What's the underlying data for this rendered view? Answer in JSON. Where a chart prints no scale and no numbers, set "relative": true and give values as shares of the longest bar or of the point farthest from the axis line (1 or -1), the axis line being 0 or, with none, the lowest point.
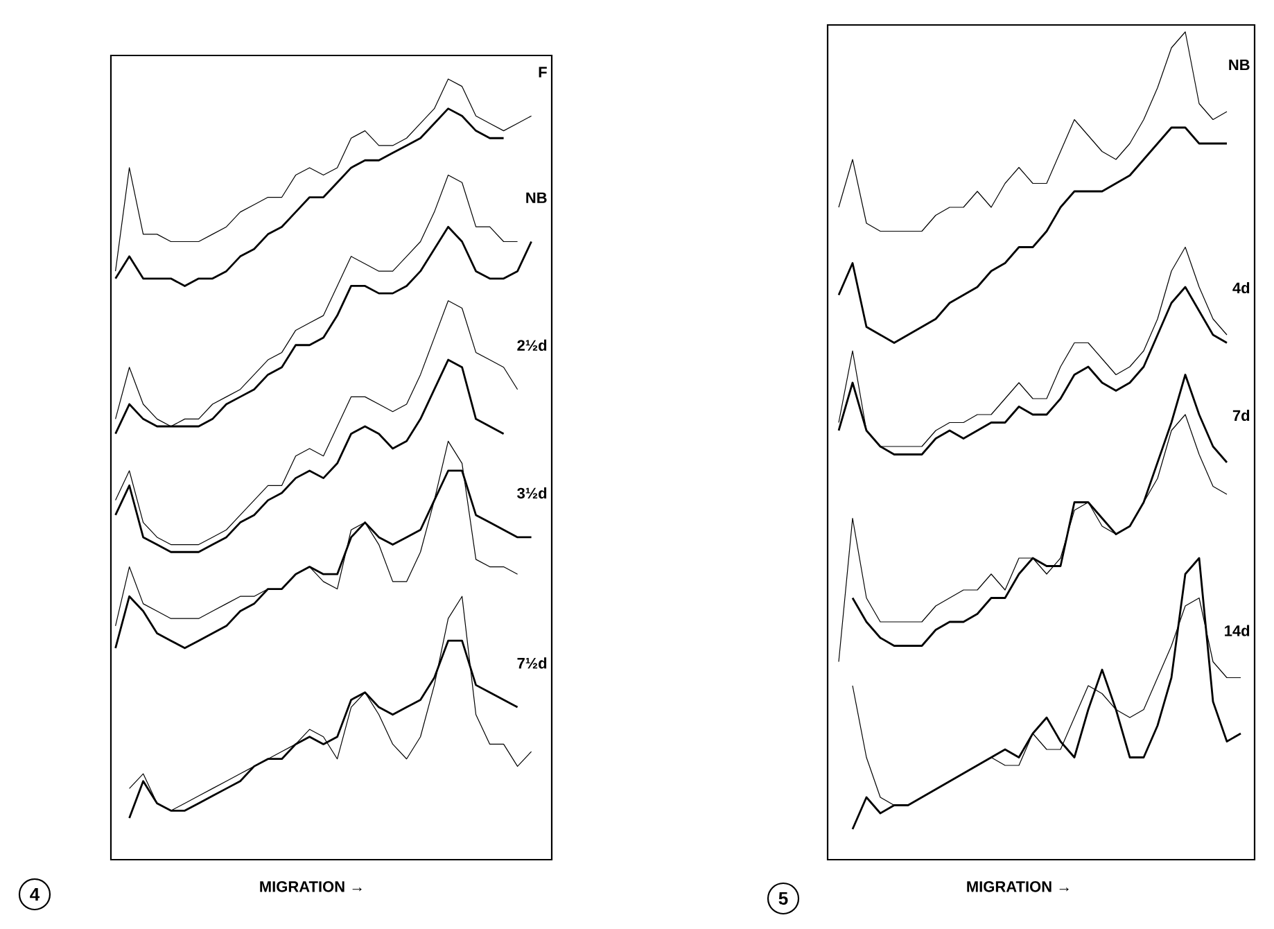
{
  "chart_data": [
    {
      "type": "line",
      "title": "4",
      "xlabel": "MIGRATION →",
      "relative": true,
      "tick_labels": false,
      "marker": "none",
      "categories": [
        null,
        null,
        null,
        null,
        null,
        null,
        null,
        null,
        null,
        null,
        null,
        null,
        null,
        null,
        null,
        null,
        null,
        null,
        null,
        null,
        null,
        null,
        null,
        null,
        null,
        null,
        null,
        null,
        null,
        null,
        null
      ],
      "annotations": [
        "F",
        "NB",
        "2½d",
        "3½d",
        "7½d"
      ],
      "series": [
        {
          "color": "#000000",
          "values": [
            0.74,
            0.88,
            0.79,
            0.79,
            0.78,
            0.78,
            0.78,
            0.79,
            0.8,
            0.82,
            0.83,
            0.84,
            0.84,
            0.87,
            0.88,
            0.87,
            0.88,
            0.92,
            0.93,
            0.91,
            0.91,
            0.92,
            0.94,
            0.96,
            1.0,
            0.99,
            0.95,
            0.94,
            0.93,
            0.94,
            0.95
          ]
        },
        {
          "color": "#000000",
          "values": [
            0.73,
            0.76,
            0.73,
            0.73,
            0.73,
            0.72,
            0.73,
            0.73,
            0.74,
            0.76,
            0.77,
            0.79,
            0.8,
            0.82,
            0.84,
            0.84,
            0.86,
            0.88,
            0.89,
            0.89,
            0.9,
            0.91,
            0.92,
            0.94,
            0.96,
            0.95,
            0.93,
            0.92,
            0.92,
            null,
            null
          ]
        },
        {
          "color": "#000000",
          "values": [
            0.54,
            0.61,
            0.56,
            0.54,
            0.53,
            0.54,
            0.54,
            0.56,
            0.57,
            0.58,
            0.6,
            0.62,
            0.63,
            0.66,
            0.67,
            0.68,
            0.72,
            0.76,
            0.75,
            0.74,
            0.74,
            0.76,
            0.78,
            0.82,
            0.87,
            0.86,
            0.8,
            0.8,
            0.78,
            0.78,
            null
          ]
        },
        {
          "color": "#000000",
          "values": [
            0.52,
            0.56,
            0.54,
            0.53,
            0.53,
            0.53,
            0.53,
            0.54,
            0.56,
            0.57,
            0.58,
            0.6,
            0.61,
            0.64,
            0.64,
            0.65,
            0.68,
            0.72,
            0.72,
            0.71,
            0.71,
            0.72,
            0.74,
            0.77,
            0.8,
            0.78,
            0.74,
            0.73,
            0.73,
            0.74,
            0.78
          ]
        },
        {
          "color": "#000000",
          "values": [
            0.43,
            0.47,
            0.4,
            0.38,
            0.37,
            0.37,
            0.37,
            0.38,
            0.39,
            0.41,
            0.43,
            0.45,
            0.45,
            0.49,
            0.5,
            0.49,
            0.53,
            0.57,
            0.57,
            0.56,
            0.55,
            0.56,
            0.6,
            0.65,
            0.7,
            0.69,
            0.63,
            0.62,
            0.61,
            0.58,
            null
          ]
        },
        {
          "color": "#000000",
          "values": [
            0.41,
            0.45,
            0.38,
            0.37,
            0.36,
            0.36,
            0.36,
            0.37,
            0.38,
            0.4,
            0.41,
            0.43,
            0.44,
            0.46,
            0.47,
            0.46,
            0.48,
            0.52,
            0.53,
            0.52,
            0.5,
            0.51,
            0.54,
            0.58,
            0.62,
            0.61,
            0.54,
            0.53,
            0.52,
            null,
            null
          ]
        },
        {
          "color": "#000000",
          "values": [
            0.26,
            0.34,
            0.29,
            0.28,
            0.27,
            0.27,
            0.27,
            0.28,
            0.29,
            0.3,
            0.3,
            0.31,
            0.31,
            0.33,
            0.34,
            0.32,
            0.31,
            0.39,
            0.4,
            0.37,
            0.32,
            0.32,
            0.36,
            0.43,
            0.51,
            0.48,
            0.35,
            0.34,
            0.34,
            0.33,
            null
          ]
        },
        {
          "color": "#000000",
          "values": [
            0.23,
            0.3,
            0.28,
            0.25,
            0.24,
            0.23,
            0.24,
            0.25,
            0.26,
            0.28,
            0.29,
            0.31,
            0.31,
            0.33,
            0.34,
            0.33,
            0.33,
            0.38,
            0.4,
            0.38,
            0.37,
            0.38,
            0.39,
            0.43,
            0.47,
            0.47,
            0.41,
            0.4,
            0.39,
            0.38,
            0.38
          ]
        },
        {
          "color": "#000000",
          "values": [
            null,
            0.04,
            0.06,
            0.02,
            0.01,
            0.02,
            0.03,
            0.04,
            0.05,
            0.06,
            0.07,
            0.08,
            0.09,
            0.1,
            0.12,
            0.11,
            0.08,
            0.15,
            0.17,
            0.14,
            0.1,
            0.08,
            0.11,
            0.18,
            0.27,
            0.3,
            0.14,
            0.1,
            0.1,
            0.07,
            0.09
          ]
        },
        {
          "color": "#000000",
          "values": [
            null,
            0.0,
            0.05,
            0.02,
            0.01,
            0.01,
            0.02,
            0.03,
            0.04,
            0.05,
            0.07,
            0.08,
            0.08,
            0.1,
            0.11,
            0.1,
            0.11,
            0.16,
            0.17,
            0.15,
            0.14,
            0.15,
            0.16,
            0.19,
            0.24,
            0.24,
            0.18,
            0.17,
            0.16,
            0.15,
            null
          ]
        }
      ]
    },
    {
      "type": "line",
      "title": "5",
      "xlabel": "MIGRATION →",
      "relative": true,
      "tick_labels": false,
      "marker": "none",
      "categories": [
        null,
        null,
        null,
        null,
        null,
        null,
        null,
        null,
        null,
        null,
        null,
        null,
        null,
        null,
        null,
        null,
        null,
        null,
        null,
        null,
        null,
        null,
        null,
        null,
        null,
        null,
        null,
        null,
        null,
        null
      ],
      "annotations": [
        "NB",
        "4d",
        "7d",
        "14d"
      ],
      "series": [
        {
          "color": "#000000",
          "values": [
            0.78,
            0.84,
            0.76,
            0.75,
            0.75,
            0.75,
            0.75,
            0.77,
            0.78,
            0.78,
            0.8,
            0.78,
            0.81,
            0.83,
            0.81,
            0.81,
            0.85,
            0.89,
            0.87,
            0.85,
            0.84,
            0.86,
            0.89,
            0.93,
            0.98,
            1.0,
            0.91,
            0.89,
            0.9,
            null
          ]
        },
        {
          "color": "#000000",
          "values": [
            0.67,
            0.71,
            0.63,
            0.62,
            0.61,
            0.62,
            0.63,
            0.64,
            0.66,
            0.67,
            0.68,
            0.7,
            0.71,
            0.73,
            0.73,
            0.75,
            0.78,
            0.8,
            0.8,
            0.8,
            0.81,
            0.82,
            0.84,
            0.86,
            0.88,
            0.88,
            0.86,
            0.86,
            0.86,
            null
          ]
        },
        {
          "color": "#000000",
          "values": [
            0.51,
            0.6,
            0.5,
            0.48,
            0.48,
            0.48,
            0.48,
            0.5,
            0.51,
            0.51,
            0.52,
            0.52,
            0.54,
            0.56,
            0.54,
            0.54,
            0.58,
            0.61,
            0.61,
            0.59,
            0.57,
            0.58,
            0.6,
            0.64,
            0.7,
            0.73,
            0.68,
            0.64,
            0.62,
            null
          ]
        },
        {
          "color": "#000000",
          "values": [
            0.5,
            0.56,
            0.5,
            0.48,
            0.47,
            0.47,
            0.47,
            0.49,
            0.5,
            0.49,
            0.5,
            0.51,
            0.51,
            0.53,
            0.52,
            0.52,
            0.54,
            0.57,
            0.58,
            0.56,
            0.55,
            0.56,
            0.58,
            0.62,
            0.66,
            0.68,
            0.65,
            0.62,
            0.61,
            null
          ]
        },
        {
          "color": "#000000",
          "values": [
            0.21,
            0.39,
            0.29,
            0.26,
            0.26,
            0.26,
            0.26,
            0.28,
            0.29,
            0.3,
            0.3,
            0.32,
            0.3,
            0.34,
            0.34,
            0.32,
            0.34,
            0.4,
            0.41,
            0.38,
            0.37,
            0.38,
            0.41,
            0.44,
            0.5,
            0.52,
            0.47,
            0.43,
            0.42,
            null
          ]
        },
        {
          "color": "#000000",
          "values": [
            null,
            0.29,
            0.26,
            0.24,
            0.23,
            0.23,
            0.23,
            0.25,
            0.26,
            0.26,
            0.27,
            0.29,
            0.29,
            0.32,
            0.34,
            0.33,
            0.33,
            0.41,
            0.41,
            0.39,
            0.37,
            0.38,
            0.41,
            0.46,
            0.51,
            0.57,
            0.52,
            0.48,
            0.46,
            null
          ]
        },
        {
          "color": "#000000",
          "values": [
            null,
            0.18,
            0.09,
            0.04,
            0.03,
            0.03,
            0.04,
            0.05,
            0.06,
            0.07,
            0.08,
            0.09,
            0.08,
            0.08,
            0.12,
            0.1,
            0.1,
            0.14,
            0.18,
            0.17,
            0.15,
            0.14,
            0.15,
            0.19,
            0.23,
            0.28,
            0.29,
            0.21,
            0.19,
            0.19
          ]
        },
        {
          "color": "#000000",
          "values": [
            null,
            0.0,
            0.04,
            0.02,
            0.03,
            0.03,
            0.04,
            0.05,
            0.06,
            0.07,
            0.08,
            0.09,
            0.1,
            0.09,
            0.12,
            0.14,
            0.11,
            0.09,
            0.15,
            0.2,
            0.15,
            0.09,
            0.09,
            0.13,
            0.19,
            0.32,
            0.34,
            0.16,
            0.11,
            0.12
          ]
        }
      ]
    }
  ]
}
